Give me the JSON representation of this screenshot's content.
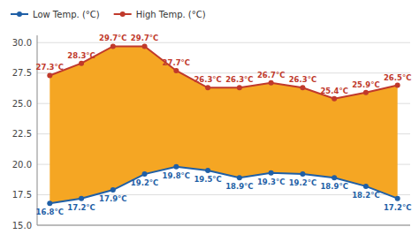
{
  "chart_data": {
    "type": "line",
    "x": [
      1,
      2,
      3,
      4,
      5,
      6,
      7,
      8,
      9,
      10,
      11,
      12
    ],
    "xlim": [
      0.6,
      12.4
    ],
    "ylim": [
      15.0,
      30.6
    ],
    "yticks": [
      {
        "value": 15.0,
        "label": "15.0"
      },
      17.5,
      {
        "value": 20.0,
        "label": "20.0"
      },
      22.5,
      {
        "value": 25.0,
        "label": "25.0"
      },
      27.5,
      {
        "value": 30.0,
        "label": "30.0"
      }
    ],
    "grid": true,
    "legend": "upper left",
    "data_labels": true,
    "tick_labels": "y",
    "color": "#f5a623",
    "series": [
      {
        "name": "Low Temp. (°C)",
        "color": "#1f5fa6",
        "marker": "circle",
        "values": [
          16.8,
          17.2,
          17.9,
          19.2,
          19.8,
          19.5,
          18.9,
          19.3,
          19.2,
          18.9,
          18.2,
          17.2
        ],
        "value_labels": [
          "16.8°C",
          "17.2°C",
          "17.9°C",
          "19.2°C",
          "19.8°C",
          "19.5°C",
          "18.9°C",
          "19.3°C",
          "19.2°C",
          "18.9°C",
          "18.2°C",
          "17.2°C"
        ]
      },
      {
        "name": "High Temp. (°C)",
        "color": "#c0392b",
        "marker": "circle",
        "values": [
          27.3,
          28.3,
          29.7,
          29.7,
          27.7,
          26.3,
          26.3,
          26.7,
          26.3,
          25.4,
          25.9,
          26.5
        ],
        "value_labels": [
          "27.3°C",
          "28.3°C",
          "29.7°C",
          "29.7°C",
          "27.7°C",
          "26.3°C",
          "26.3°C",
          "26.7°C",
          "26.3°C",
          "25.4°C",
          "25.9°C",
          "26.5°C"
        ]
      }
    ]
  }
}
